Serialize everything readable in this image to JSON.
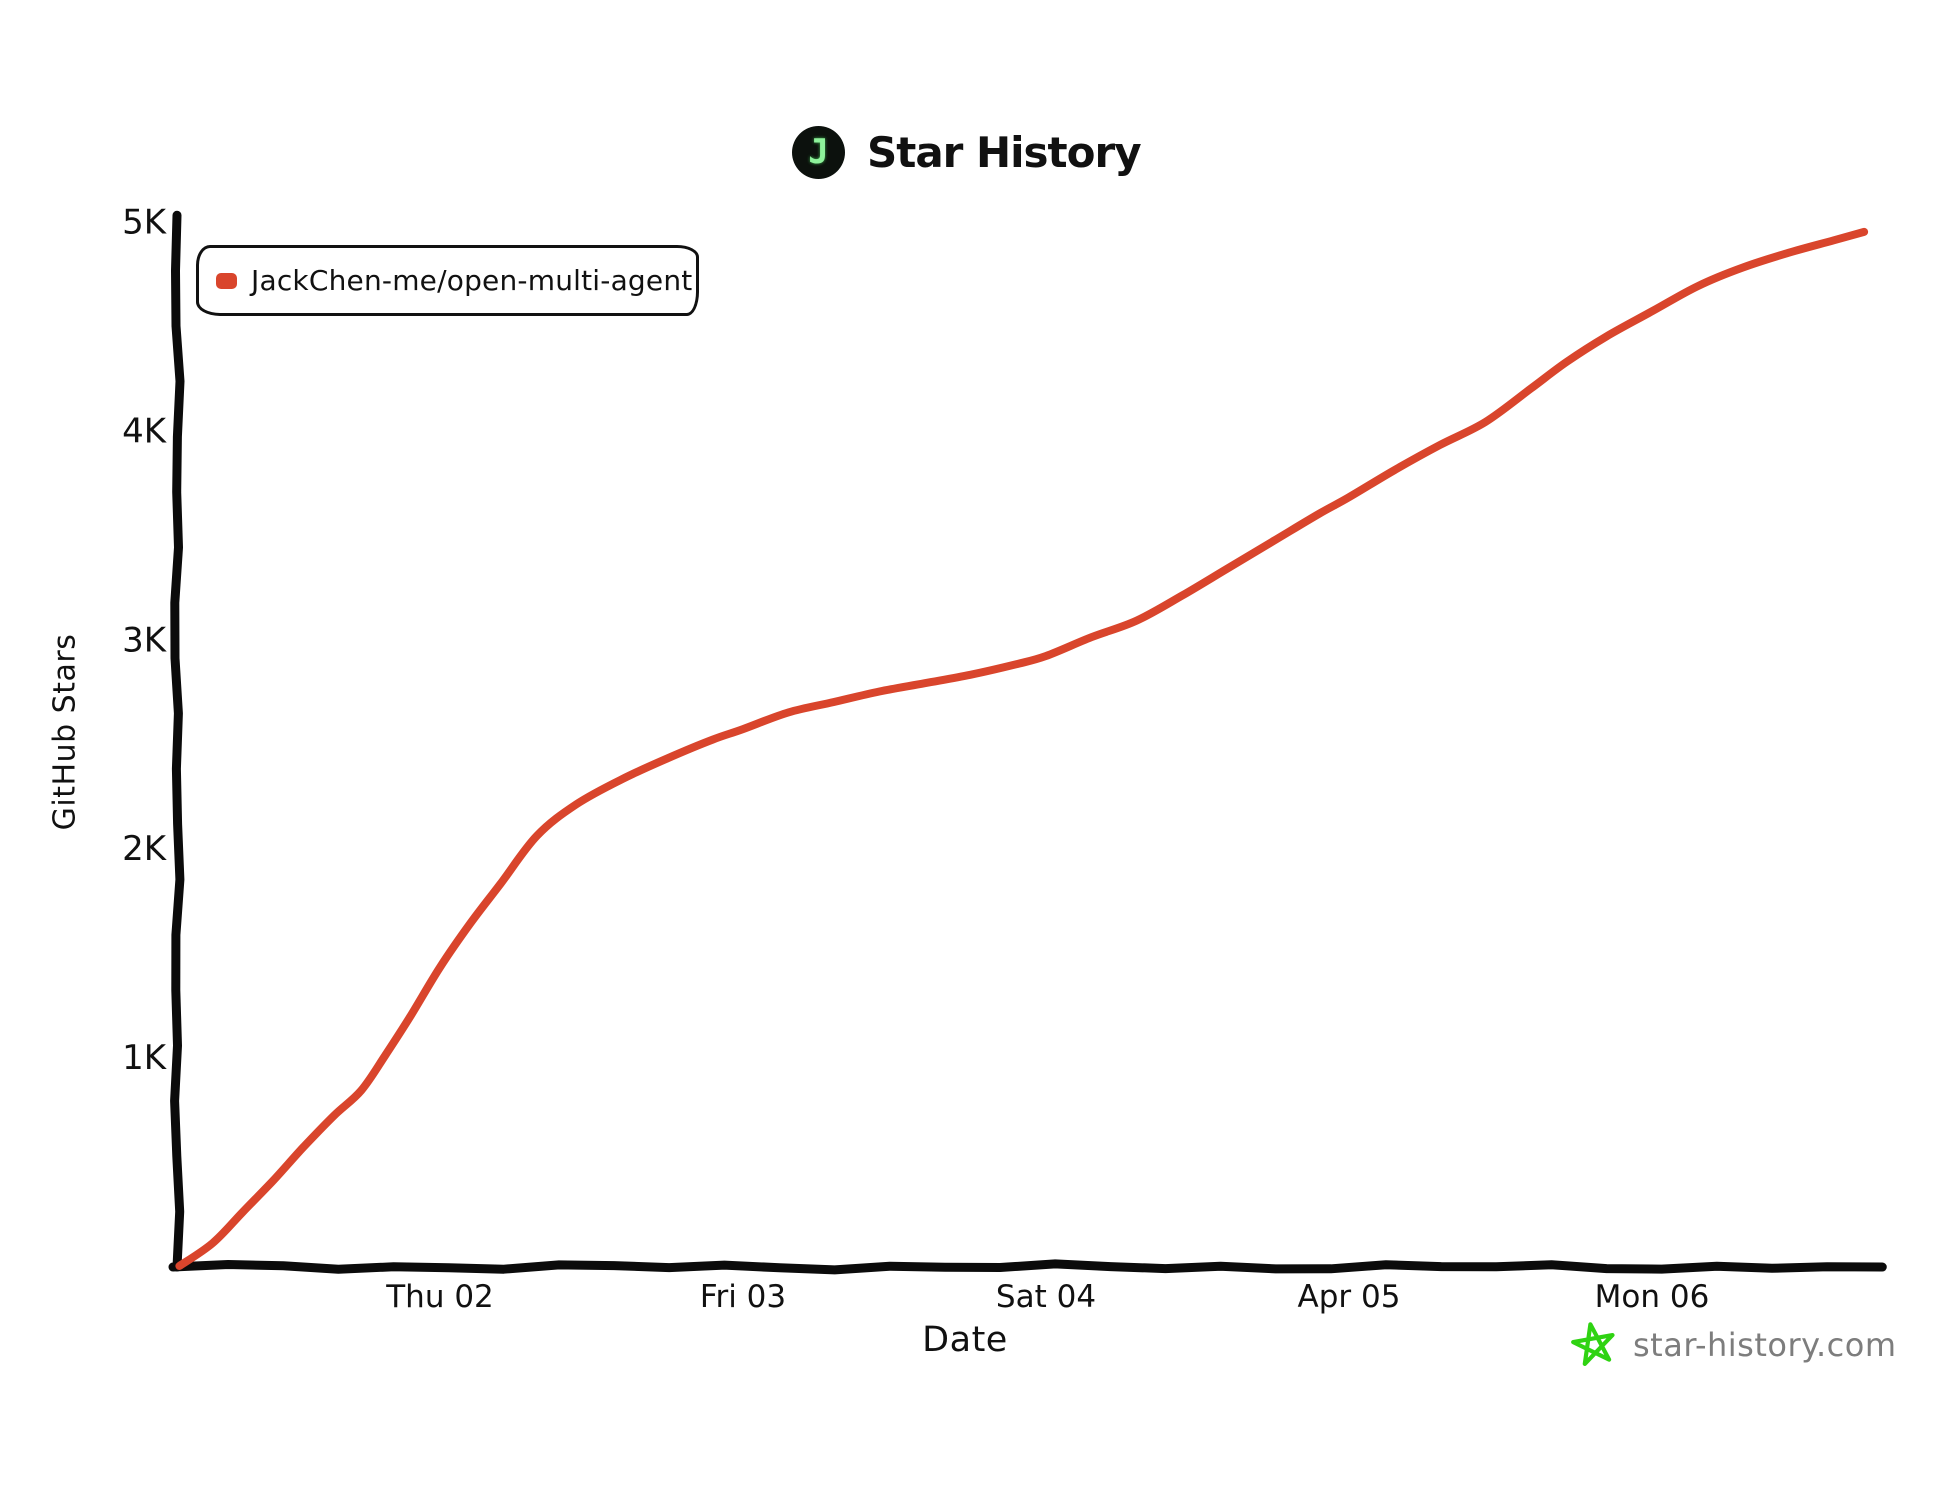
{
  "header": {
    "title": "Star History",
    "logo_letter": "J"
  },
  "footer": {
    "watermark": "star-history.com"
  },
  "colors": {
    "series": "#d9452c",
    "axis": "#0b0b0b",
    "logo_background": "#0c110d",
    "logo_letter": "#8ef29b",
    "star_icon": "#2fd312",
    "watermark_text": "#7d7d7d"
  },
  "icons": {
    "logo": "circle-with-letter-j",
    "watermark_star": "hand-drawn-green-star"
  },
  "chart_data": {
    "type": "line",
    "title": "Star History",
    "xlabel": "Date",
    "ylabel": "GitHub Stars",
    "grid": false,
    "legend_position": "top-left",
    "x_unit": "days since Apr 01 00:00",
    "xlim": [
      0.0,
      5.76
    ],
    "ylim": [
      0,
      5030
    ],
    "x_ticks": [
      {
        "label": "Thu 02",
        "x": 1
      },
      {
        "label": "Fri 03",
        "x": 2
      },
      {
        "label": "Sat 04",
        "x": 3
      },
      {
        "label": "Apr 05",
        "x": 4
      },
      {
        "label": "Mon 06",
        "x": 5
      }
    ],
    "y_ticks": [
      {
        "label": "1K",
        "value": 1000
      },
      {
        "label": "2K",
        "value": 2000
      },
      {
        "label": "3K",
        "value": 3000
      },
      {
        "label": "4K",
        "value": 4000
      },
      {
        "label": "5K",
        "value": 5000
      }
    ],
    "series": [
      {
        "name": "JackChen-me/open-multi-agent",
        "color": "#d9452c",
        "points_format": [
          "days_since_Apr01",
          "stars"
        ],
        "points": [
          [
            0.14,
            0
          ],
          [
            0.25,
            110
          ],
          [
            0.35,
            260
          ],
          [
            0.45,
            410
          ],
          [
            0.55,
            570
          ],
          [
            0.65,
            720
          ],
          [
            0.74,
            840
          ],
          [
            0.82,
            1010
          ],
          [
            0.9,
            1190
          ],
          [
            1.0,
            1430
          ],
          [
            1.1,
            1640
          ],
          [
            1.2,
            1830
          ],
          [
            1.32,
            2060
          ],
          [
            1.45,
            2210
          ],
          [
            1.6,
            2330
          ],
          [
            1.75,
            2430
          ],
          [
            1.9,
            2520
          ],
          [
            2.0,
            2570
          ],
          [
            2.15,
            2650
          ],
          [
            2.3,
            2700
          ],
          [
            2.45,
            2750
          ],
          [
            2.6,
            2790
          ],
          [
            2.75,
            2830
          ],
          [
            2.9,
            2880
          ],
          [
            3.0,
            2920
          ],
          [
            3.15,
            3010
          ],
          [
            3.3,
            3090
          ],
          [
            3.45,
            3210
          ],
          [
            3.6,
            3340
          ],
          [
            3.75,
            3470
          ],
          [
            3.9,
            3600
          ],
          [
            4.0,
            3680
          ],
          [
            4.15,
            3810
          ],
          [
            4.3,
            3930
          ],
          [
            4.45,
            4040
          ],
          [
            4.6,
            4200
          ],
          [
            4.72,
            4330
          ],
          [
            4.85,
            4450
          ],
          [
            5.0,
            4570
          ],
          [
            5.15,
            4690
          ],
          [
            5.3,
            4780
          ],
          [
            5.45,
            4850
          ],
          [
            5.6,
            4910
          ],
          [
            5.7,
            4950
          ]
        ]
      }
    ]
  }
}
